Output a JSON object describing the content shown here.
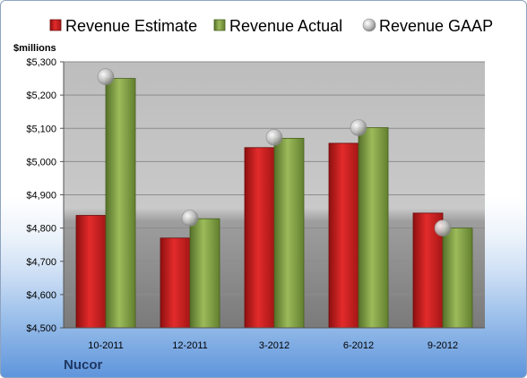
{
  "chart_data": {
    "type": "bar",
    "categories": [
      "10-2011",
      "12-2011",
      "3-2012",
      "6-2012",
      "9-2012"
    ],
    "series": [
      {
        "name": "Revenue Estimate",
        "kind": "bar",
        "color": "#cc1f1f",
        "values": [
          4838,
          4770,
          5042,
          5055,
          4845
        ]
      },
      {
        "name": "Revenue Actual",
        "kind": "bar",
        "color": "#7a9a3a",
        "values": [
          5250,
          4828,
          5070,
          5102,
          4800
        ]
      },
      {
        "name": "Revenue GAAP",
        "kind": "marker",
        "color": "#b8b8b8",
        "values": [
          5255,
          4830,
          5073,
          5102,
          4800
        ]
      }
    ],
    "ylabel": "$millions",
    "yticks": [
      "$4,500",
      "$4,600",
      "$4,700",
      "$4,800",
      "$4,900",
      "$5,000",
      "$5,100",
      "$5,200",
      "$5,300"
    ],
    "ylim": [
      4500,
      5300
    ],
    "grid": true,
    "legend_position": "top"
  },
  "company": "Nucor"
}
